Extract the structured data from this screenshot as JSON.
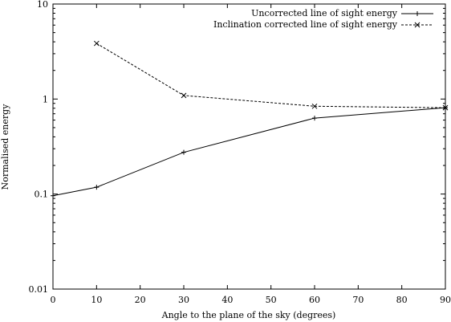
{
  "chart_data": {
    "type": "line",
    "xlabel": "Angle to the plane of the sky (degrees)",
    "ylabel": "Normalised energy",
    "xlim": [
      0,
      90
    ],
    "ylim": [
      0.01,
      10
    ],
    "yscale": "log",
    "xticks": [
      0,
      10,
      20,
      30,
      40,
      50,
      60,
      70,
      80,
      90
    ],
    "xtick_labels": [
      "0",
      "10",
      "20",
      "30",
      "40",
      "50",
      "60",
      "70",
      "80",
      "90"
    ],
    "yticks": [
      0.01,
      0.1,
      1,
      10
    ],
    "ytick_labels": [
      "0.01",
      "0.1",
      "1",
      "10"
    ],
    "legend_position": "top-right",
    "grid": false,
    "series": [
      {
        "name": "Uncorrected line of sight energy",
        "marker": "plus",
        "line_style": "solid",
        "x": [
          0,
          10,
          30,
          60,
          90
        ],
        "y": [
          0.096,
          0.118,
          0.275,
          0.63,
          0.81
        ]
      },
      {
        "name": "Inclination corrected line of sight energy",
        "marker": "cross",
        "line_style": "dashed",
        "x": [
          10,
          30,
          60,
          90
        ],
        "y": [
          3.85,
          1.09,
          0.84,
          0.81
        ]
      }
    ]
  }
}
